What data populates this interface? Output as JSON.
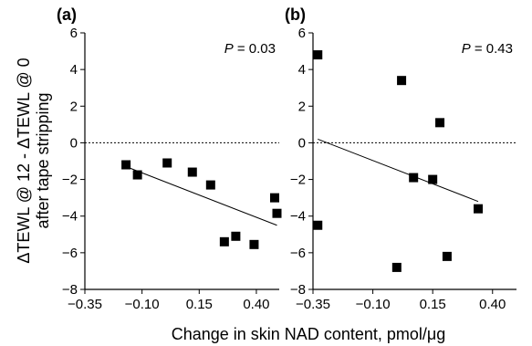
{
  "chart_data": [
    {
      "type": "scatter",
      "panel_label": "(a)",
      "annotation_italic": "P",
      "annotation_value": " = 0.03",
      "xlim": [
        -0.35,
        0.5
      ],
      "ylim": [
        -8,
        6
      ],
      "xticks": [
        "−0.35",
        "−0.10",
        "0.15",
        "0.40"
      ],
      "xtick_values": [
        -0.35,
        -0.1,
        0.15,
        0.4
      ],
      "yticks": [
        "6",
        "4",
        "2",
        "0",
        "−2",
        "−4",
        "−6",
        "−8"
      ],
      "ytick_values": [
        6,
        4,
        2,
        0,
        -2,
        -4,
        -6,
        -8
      ],
      "reference_line_y": 0,
      "points": [
        {
          "x": -0.17,
          "y": -1.2
        },
        {
          "x": -0.12,
          "y": -1.75
        },
        {
          "x": 0.01,
          "y": -1.1
        },
        {
          "x": 0.12,
          "y": -1.6
        },
        {
          "x": 0.2,
          "y": -2.3
        },
        {
          "x": 0.26,
          "y": -5.4
        },
        {
          "x": 0.31,
          "y": -5.1
        },
        {
          "x": 0.39,
          "y": -5.55
        },
        {
          "x": 0.48,
          "y": -3.0
        },
        {
          "x": 0.49,
          "y": -3.85
        }
      ],
      "trendline": {
        "x": [
          -0.17,
          0.49
        ],
        "y": [
          -1.3,
          -4.5
        ]
      }
    },
    {
      "type": "scatter",
      "panel_label": "(b)",
      "annotation_italic": "P",
      "annotation_value": " = 0.43",
      "xlim": [
        -0.35,
        0.5
      ],
      "ylim": [
        -8,
        6
      ],
      "xticks": [
        "−0.35",
        "−0.10",
        "0.15",
        "0.40"
      ],
      "xtick_values": [
        -0.35,
        -0.1,
        0.15,
        0.4
      ],
      "yticks": [
        "6",
        "4",
        "2",
        "0",
        "−2",
        "−4",
        "−6",
        "−8"
      ],
      "ytick_values": [
        6,
        4,
        2,
        0,
        -2,
        -4,
        -6,
        -8
      ],
      "reference_line_y": 0,
      "points": [
        {
          "x": -0.33,
          "y": 4.8
        },
        {
          "x": -0.33,
          "y": -4.5
        },
        {
          "x": 0.02,
          "y": 3.4
        },
        {
          "x": 0.0,
          "y": -6.8
        },
        {
          "x": 0.07,
          "y": -1.9
        },
        {
          "x": 0.15,
          "y": -2.0
        },
        {
          "x": 0.18,
          "y": 1.1
        },
        {
          "x": 0.21,
          "y": -6.2
        },
        {
          "x": 0.34,
          "y": -3.6
        }
      ],
      "trendline": {
        "x": [
          -0.33,
          0.34
        ],
        "y": [
          0.2,
          -3.2
        ]
      }
    }
  ],
  "shared": {
    "ylabel_line1": "ΔTEWL @ 12 - ΔTEWL @ 0",
    "ylabel_line2": "after tape stripping",
    "xlabel": "Change in skin NAD content, pmol/μg"
  }
}
